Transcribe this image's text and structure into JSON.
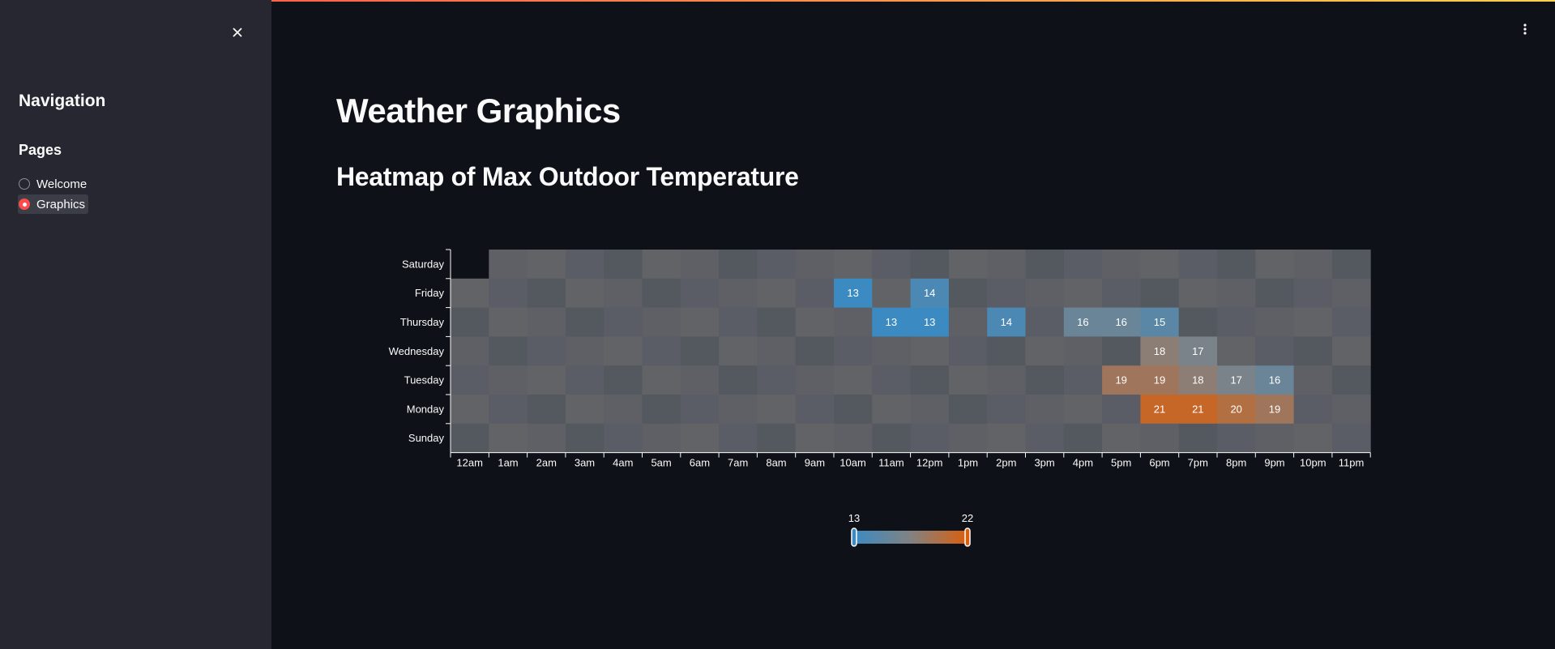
{
  "sidebar": {
    "nav_title": "Navigation",
    "pages_label": "Pages",
    "options": [
      {
        "label": "Welcome",
        "selected": false
      },
      {
        "label": "Graphics",
        "selected": true
      }
    ]
  },
  "main": {
    "title": "Weather Graphics",
    "subtitle": "Heatmap of Max Outdoor Temperature"
  },
  "colors": {
    "background": "#0e1117",
    "sidebar": "#262730",
    "accent": "#ff4b4b",
    "scale_low": "#3b8bc2",
    "scale_high": "#d95f0e"
  },
  "chart_data": {
    "type": "heatmap",
    "x": [
      "12am",
      "1am",
      "2am",
      "3am",
      "4am",
      "5am",
      "6am",
      "7am",
      "8am",
      "9am",
      "10am",
      "11am",
      "12pm",
      "1pm",
      "2pm",
      "3pm",
      "4pm",
      "5pm",
      "6pm",
      "7pm",
      "8pm",
      "9pm",
      "10pm",
      "11pm"
    ],
    "y": [
      "Saturday",
      "Friday",
      "Thursday",
      "Wednesday",
      "Tuesday",
      "Monday",
      "Sunday"
    ],
    "cells": [
      {
        "day": "Friday",
        "hour": "10am",
        "value": 13
      },
      {
        "day": "Friday",
        "hour": "12pm",
        "value": 14
      },
      {
        "day": "Thursday",
        "hour": "11am",
        "value": 13
      },
      {
        "day": "Thursday",
        "hour": "12pm",
        "value": 13
      },
      {
        "day": "Thursday",
        "hour": "2pm",
        "value": 14
      },
      {
        "day": "Thursday",
        "hour": "4pm",
        "value": 16
      },
      {
        "day": "Thursday",
        "hour": "5pm",
        "value": 16
      },
      {
        "day": "Thursday",
        "hour": "6pm",
        "value": 15
      },
      {
        "day": "Wednesday",
        "hour": "6pm",
        "value": 18
      },
      {
        "day": "Wednesday",
        "hour": "7pm",
        "value": 17
      },
      {
        "day": "Tuesday",
        "hour": "5pm",
        "value": 19
      },
      {
        "day": "Tuesday",
        "hour": "6pm",
        "value": 19
      },
      {
        "day": "Tuesday",
        "hour": "7pm",
        "value": 18
      },
      {
        "day": "Tuesday",
        "hour": "8pm",
        "value": 17
      },
      {
        "day": "Tuesday",
        "hour": "9pm",
        "value": 16
      },
      {
        "day": "Monday",
        "hour": "6pm",
        "value": 21
      },
      {
        "day": "Monday",
        "hour": "7pm",
        "value": 21
      },
      {
        "day": "Monday",
        "hour": "8pm",
        "value": 20
      },
      {
        "day": "Monday",
        "hour": "9pm",
        "value": 19
      }
    ],
    "empty_cells": [
      {
        "day": "Saturday",
        "hour": "12am"
      }
    ],
    "legend": {
      "min": 13,
      "max": 22
    }
  }
}
